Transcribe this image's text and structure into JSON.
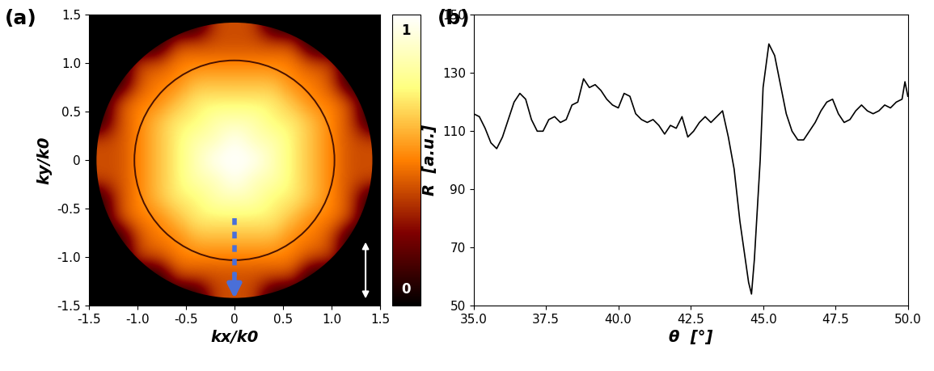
{
  "chart_data": [
    {
      "type": "heatmap",
      "panel_label": "(a)",
      "x_label": "kx/k0",
      "y_label": "ky/k0",
      "xlim": [
        -1.5,
        1.5
      ],
      "ylim": [
        -1.5,
        1.5
      ],
      "xticks": [
        -1.5,
        -1.0,
        -0.5,
        0,
        0.5,
        1.0,
        1.5
      ],
      "yticks": [
        -1.5,
        -1.0,
        -0.5,
        0,
        0.5,
        1.0,
        1.5
      ],
      "aperture_radius": 1.42,
      "ring_radius": 1.03,
      "colorbar_range": [
        0,
        1
      ],
      "colorbar_ticks": [
        0,
        1
      ],
      "cells": [
        [
          0,
          0,
          0,
          0,
          0,
          0,
          0.4,
          0.4,
          0.4,
          0,
          0,
          0,
          0,
          0,
          0
        ],
        [
          0,
          0,
          0,
          0,
          0.4,
          0.4,
          0.4,
          0.4,
          0.4,
          0.4,
          0.4,
          0,
          0,
          0,
          0
        ],
        [
          0,
          0,
          0.4,
          0.4,
          0.5,
          0.5,
          0.5,
          0.5,
          0.5,
          0.5,
          0.5,
          0.4,
          0.4,
          0,
          0
        ],
        [
          0,
          0,
          0.4,
          0.5,
          0.5,
          0.62,
          0.62,
          0.62,
          0.62,
          0.62,
          0.5,
          0.5,
          0.4,
          0,
          0
        ],
        [
          0,
          0.4,
          0.5,
          0.5,
          0.62,
          0.72,
          0.72,
          0.72,
          0.72,
          0.72,
          0.62,
          0.5,
          0.5,
          0.4,
          0
        ],
        [
          0,
          0.4,
          0.5,
          0.62,
          0.72,
          0.72,
          0.85,
          0.85,
          0.85,
          0.72,
          0.72,
          0.62,
          0.5,
          0.4,
          0
        ],
        [
          0.4,
          0.4,
          0.5,
          0.62,
          0.72,
          0.85,
          0.85,
          1.0,
          0.85,
          0.85,
          0.72,
          0.62,
          0.5,
          0.4,
          0.4
        ],
        [
          0.4,
          0.4,
          0.5,
          0.62,
          0.72,
          0.85,
          1.0,
          1.0,
          1.0,
          0.85,
          0.72,
          0.62,
          0.5,
          0.4,
          0.4
        ],
        [
          0.4,
          0.4,
          0.5,
          0.62,
          0.72,
          0.85,
          0.85,
          1.0,
          0.85,
          0.85,
          0.72,
          0.62,
          0.5,
          0.4,
          0.4
        ],
        [
          0,
          0.4,
          0.5,
          0.62,
          0.72,
          0.72,
          0.85,
          0.85,
          0.85,
          0.72,
          0.72,
          0.62,
          0.5,
          0.4,
          0
        ],
        [
          0,
          0.4,
          0.5,
          0.5,
          0.62,
          0.72,
          0.72,
          0.72,
          0.72,
          0.72,
          0.62,
          0.5,
          0.5,
          0.4,
          0
        ],
        [
          0,
          0,
          0.4,
          0.5,
          0.5,
          0.62,
          0.62,
          0.62,
          0.62,
          0.62,
          0.5,
          0.5,
          0.4,
          0,
          0
        ],
        [
          0,
          0,
          0.4,
          0.4,
          0.5,
          0.5,
          0.5,
          0.5,
          0.5,
          0.5,
          0.5,
          0.4,
          0.4,
          0,
          0
        ],
        [
          0,
          0,
          0,
          0,
          0.4,
          0.4,
          0.4,
          0.4,
          0.4,
          0.4,
          0.4,
          0,
          0,
          0,
          0
        ],
        [
          0,
          0,
          0,
          0,
          0,
          0,
          0.4,
          0.4,
          0.4,
          0,
          0,
          0,
          0,
          0,
          0
        ]
      ]
    },
    {
      "type": "line",
      "panel_label": "(b)",
      "x_label": "θ  [°]",
      "y_label": "R  [a.u.]",
      "xlim": [
        35.0,
        50.0
      ],
      "ylim": [
        50,
        150
      ],
      "xticks": [
        35.0,
        37.5,
        40.0,
        42.5,
        45.0,
        47.5,
        50.0
      ],
      "yticks": [
        50,
        70,
        90,
        110,
        130,
        150
      ],
      "color": "#000000",
      "x": [
        35.0,
        35.2,
        35.4,
        35.6,
        35.8,
        36.0,
        36.2,
        36.4,
        36.6,
        36.8,
        37.0,
        37.2,
        37.4,
        37.6,
        37.8,
        38.0,
        38.2,
        38.4,
        38.6,
        38.8,
        39.0,
        39.2,
        39.4,
        39.6,
        39.8,
        40.0,
        40.2,
        40.4,
        40.6,
        40.8,
        41.0,
        41.2,
        41.4,
        41.6,
        41.8,
        42.0,
        42.2,
        42.4,
        42.6,
        42.8,
        43.0,
        43.2,
        43.4,
        43.6,
        43.8,
        44.0,
        44.2,
        44.4,
        44.5,
        44.6,
        44.7,
        44.9,
        45.0,
        45.2,
        45.4,
        45.6,
        45.8,
        46.0,
        46.2,
        46.4,
        46.6,
        46.8,
        47.0,
        47.2,
        47.4,
        47.6,
        47.8,
        48.0,
        48.2,
        48.4,
        48.6,
        48.8,
        49.0,
        49.2,
        49.4,
        49.6,
        49.8,
        49.9,
        50.0
      ],
      "values": [
        116,
        115,
        111,
        106,
        104,
        108,
        114,
        120,
        123,
        121,
        114,
        110,
        110,
        114,
        115,
        113,
        114,
        119,
        120,
        128,
        125,
        126,
        124,
        121,
        119,
        118,
        123,
        122,
        116,
        114,
        113,
        114,
        112,
        109,
        112,
        111,
        115,
        108,
        110,
        113,
        115,
        113,
        115,
        117,
        108,
        97,
        79,
        65,
        58,
        54,
        66,
        100,
        125,
        140,
        136,
        126,
        116,
        110,
        107,
        107,
        110,
        113,
        117,
        120,
        121,
        116,
        113,
        114,
        117,
        119,
        117,
        116,
        117,
        119,
        118,
        120,
        121,
        127,
        122
      ]
    }
  ]
}
